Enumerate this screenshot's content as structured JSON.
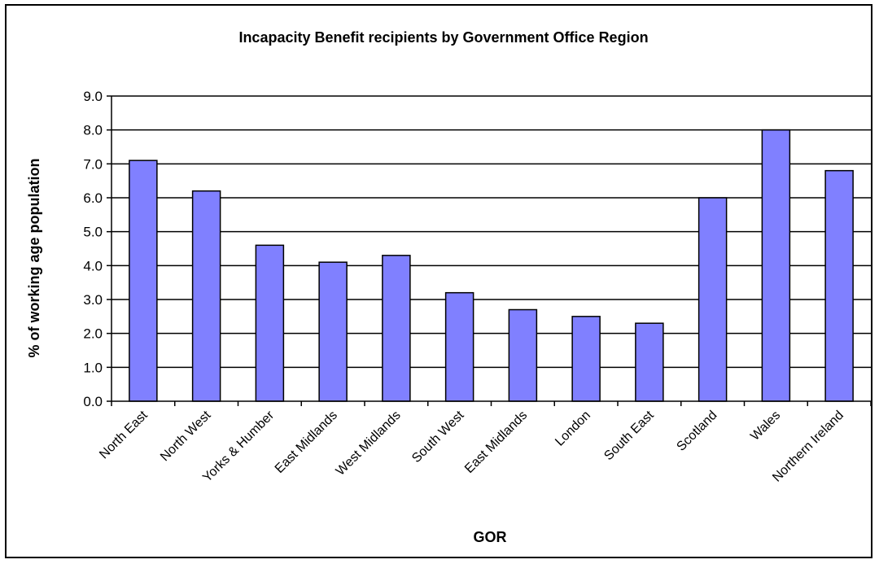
{
  "chart_data": {
    "type": "bar",
    "title": "Incapacity Benefit recipients by Government Office Region",
    "xlabel": "GOR",
    "ylabel": "% of working age population",
    "categories": [
      "North East",
      "North West",
      "Yorks & Humber",
      "East Midlands",
      "West Midlands",
      "South West",
      "East Midlands",
      "London",
      "South East",
      "Scotland",
      "Wales",
      "Northern Ireland"
    ],
    "values": [
      7.1,
      6.2,
      4.6,
      4.1,
      4.3,
      3.2,
      2.7,
      2.5,
      2.3,
      6.0,
      8.0,
      6.8
    ],
    "yticks": [
      "0.0",
      "1.0",
      "2.0",
      "3.0",
      "4.0",
      "5.0",
      "6.0",
      "7.0",
      "8.0",
      "9.0"
    ],
    "ylim": [
      0,
      9
    ],
    "grid": true,
    "legend": "none",
    "colors": {
      "bar_fill": "#8080ff",
      "bar_stroke": "#000000",
      "grid": "#000000"
    }
  }
}
